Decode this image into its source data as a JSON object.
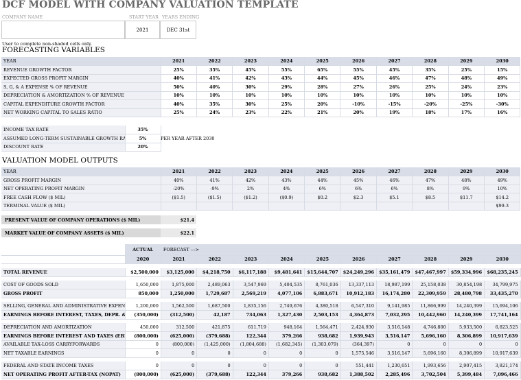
{
  "title": "DCF MODEL WITH COMPANY VALUATION TEMPLATE",
  "company_name_label": "COMPANY NAME",
  "start_year_label": "START YEAR",
  "years_ending_label": "YEARS ENDING",
  "start_year": "2021",
  "years_ending": "DEC 31st",
  "note": "User to complete non-shaded cells only.",
  "forecasting": {
    "heading": "FORECASTING VARIABLES",
    "year_label": "YEAR",
    "years": [
      "2021",
      "2022",
      "2023",
      "2024",
      "2025",
      "2026",
      "2027",
      "2028",
      "2029",
      "2030"
    ],
    "rows": [
      {
        "label": "REVENUE GROWTH FACTOR",
        "values": [
          "25%",
          "35%",
          "45%",
          "55%",
          "65%",
          "55%",
          "45%",
          "35%",
          "25%",
          "15%"
        ]
      },
      {
        "label": "EXPECTED GROSS PROFIT MARGIN",
        "values": [
          "40%",
          "41%",
          "42%",
          "43%",
          "44%",
          "45%",
          "46%",
          "47%",
          "48%",
          "49%"
        ]
      },
      {
        "label": "S, G, & A EXPENSE % OF REVENUE",
        "values": [
          "50%",
          "40%",
          "30%",
          "29%",
          "28%",
          "27%",
          "26%",
          "25%",
          "24%",
          "23%"
        ]
      },
      {
        "label": "DEPRECIATION & AMORTIZATION % OF REVENUE",
        "values": [
          "10%",
          "10%",
          "10%",
          "10%",
          "10%",
          "10%",
          "10%",
          "10%",
          "10%",
          "10%"
        ]
      },
      {
        "label": "CAPITAL EXPENDITURE GROWTH FACTOR",
        "values": [
          "40%",
          "35%",
          "30%",
          "25%",
          "20%",
          "-10%",
          "-15%",
          "-20%",
          "-25%",
          "-30%"
        ]
      },
      {
        "label": "NET WORKING CAPITAL TO SALES RATIO",
        "values": [
          "25%",
          "24%",
          "23%",
          "22%",
          "21%",
          "20%",
          "19%",
          "18%",
          "17%",
          "16%"
        ]
      }
    ]
  },
  "rates": {
    "income_tax_label": "INCOME TAX RATE",
    "income_tax": "35%",
    "growth_label": "ASSUMED LONG-TERM SUSTAINABLE GROWTH RATE",
    "growth": "5%",
    "growth_note": "PER YEAR AFTER 2030",
    "discount_label": "DISCOUNT RATE",
    "discount": "20%"
  },
  "valuation": {
    "heading": "VALUATION MODEL OUTPUTS",
    "year_label": "YEAR",
    "years": [
      "2021",
      "2022",
      "2023",
      "2024",
      "2025",
      "2026",
      "2027",
      "2028",
      "2029",
      "2030"
    ],
    "rows": [
      {
        "label": "GROSS PROFIT MARGIN",
        "values": [
          "40%",
          "41%",
          "42%",
          "43%",
          "44%",
          "45%",
          "46%",
          "47%",
          "48%",
          "49%"
        ]
      },
      {
        "label": "NET OPERATING PROFIT MARGIN",
        "values": [
          "-20%",
          "-9%",
          "2%",
          "4%",
          "6%",
          "6%",
          "6%",
          "8%",
          "9%",
          "10%"
        ]
      },
      {
        "label": "FREE CASH FLOW ($ MIL)",
        "values": [
          "($1.5)",
          "($1.5)",
          "($1.2)",
          "($0.9)",
          "$0.2",
          "$2.3",
          "$5.1",
          "$8.5",
          "$11.7",
          "$14.2"
        ]
      },
      {
        "label": "TERMINAL VALUE ($ MIL)",
        "values": [
          "",
          "",
          "",
          "",
          "",
          "",
          "",
          "",
          "",
          "$99.3"
        ]
      }
    ],
    "pv_label": "PRESENT VALUE OF COMPANY OPERATIONS ($ MIL)",
    "pv_value": "$21.4",
    "mv_label": "MARKET VALUE OF COMPANY ASSETS ($ MIL)",
    "mv_value": "$22.1"
  },
  "financials": {
    "actual_label": "ACTUAL",
    "forecast_label": "FORECAST --->",
    "years": [
      "2020",
      "2021",
      "2022",
      "2023",
      "2024",
      "2025",
      "2026",
      "2027",
      "2028",
      "2029",
      "2030"
    ],
    "rows": [
      {
        "label": "TOTAL REVENUE",
        "bold": true,
        "values": [
          "$2,500,000",
          "$3,125,000",
          "$4,218,750",
          "$6,117,188",
          "$9,481,641",
          "$15,644,707",
          "$24,249,296",
          "$35,161,479",
          "$47,467,997",
          "$59,334,996",
          "$68,235,245"
        ]
      },
      {
        "label": "COST OF GOODS SOLD",
        "bold": false,
        "values": [
          "1,650,000",
          "1,875,000",
          "2,489,063",
          "3,547,969",
          "5,404,535",
          "8,761,036",
          "13,337,113",
          "18,987,199",
          "25,158,038",
          "30,854,198",
          "34,799,975"
        ]
      },
      {
        "label": "GROSS PROFIT",
        "bold": true,
        "values": [
          "850,000",
          "1,250,000",
          "1,729,687",
          "2,569,219",
          "4,077,106",
          "6,883,671",
          "10,912,183",
          "16,174,280",
          "22,309,959",
          "28,480,798",
          "33,435,270"
        ]
      },
      {
        "label": "SELLING, GENERAL AND ADMINISTRATIVE EXPENSES",
        "bold": false,
        "values": [
          "1,200,000",
          "1,562,500",
          "1,687,500",
          "1,835,156",
          "2,749,676",
          "4,380,518",
          "6,547,310",
          "9,141,985",
          "11,866,999",
          "14,240,399",
          "15,694,106"
        ]
      },
      {
        "label": "EARNINGS BEFORE INTEREST, TAXES, DEPR. & AMORT.",
        "bold": true,
        "values": [
          "(350,000)",
          "(312,500)",
          "42,187",
          "734,063",
          "1,327,430",
          "2,503,153",
          "4,364,873",
          "7,032,295",
          "10,442,960",
          "14,240,399",
          "17,741,164"
        ]
      },
      {
        "label": "DEPRECIATION AND AMORTIZATION",
        "bold": false,
        "values": [
          "450,000",
          "312,500",
          "421,875",
          "611,719",
          "948,164",
          "1,564,471",
          "2,424,930",
          "3,516,148",
          "4,746,800",
          "5,933,500",
          "6,823,525"
        ]
      },
      {
        "label": "EARNINGS BEFORE INTEREST AND TAXES (EBIT)",
        "bold": true,
        "values": [
          "(800,000)",
          "(625,000)",
          "(379,688)",
          "122,344",
          "379,266",
          "938,682",
          "1,939,943",
          "3,516,147",
          "5,696,160",
          "8,306,899",
          "10,917,639"
        ]
      },
      {
        "label": "AVAILABLE TAX-LOSS CARRYFORWARDS",
        "bold": false,
        "values": [
          "0",
          "(800,000)",
          "(1,425,000)",
          "(1,804,688)",
          "(1,682,345)",
          "(1,303,079)",
          "(364,397)",
          "0",
          "0",
          "0",
          "0"
        ]
      },
      {
        "label": "NET TAXABLE EARNINGS",
        "bold": false,
        "values": [
          "0",
          "0",
          "0",
          "0",
          "0",
          "0",
          "1,575,546",
          "3,516,147",
          "5,696,160",
          "8,306,899",
          "10,917,639"
        ]
      },
      {
        "label": "FEDERAL AND STATE INCOME TAXES",
        "bold": false,
        "values": [
          "0",
          "0",
          "0",
          "0",
          "0",
          "0",
          "551,441",
          "1,230,651",
          "1,993,656",
          "2,907,415",
          "3,821,174"
        ]
      },
      {
        "label": "NET OPERATING PROFIT AFTER-TAX (NOPAT)",
        "bold": true,
        "values": [
          "(800,000)",
          "(625,000)",
          "(379,688)",
          "122,344",
          "379,266",
          "938,682",
          "1,388,502",
          "2,285,496",
          "3,702,504",
          "5,399,484",
          "7,096,466"
        ]
      }
    ]
  }
}
